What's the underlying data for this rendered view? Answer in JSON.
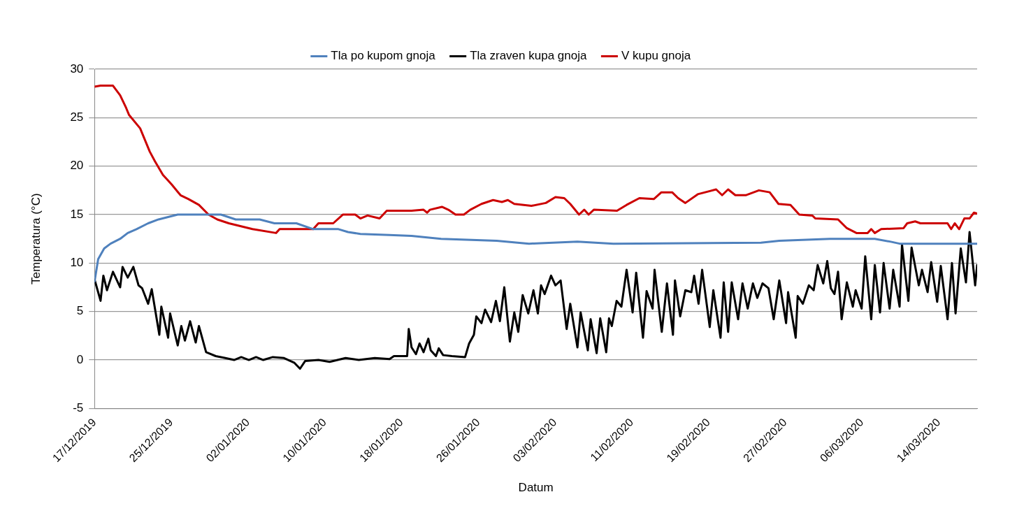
{
  "chart_data": {
    "type": "line",
    "xlabel": "Datum",
    "ylabel": "Temperatura (°C)",
    "xlim": [
      "2019-12-17",
      "2020-03-18"
    ],
    "xticks": [
      {
        "value": "2019-12-17",
        "label": "17/12/2019"
      },
      {
        "value": "2019-12-25",
        "label": "25/12/2019"
      },
      {
        "value": "2020-01-02",
        "label": "02/01/2020"
      },
      {
        "value": "2020-01-10",
        "label": "10/01/2020"
      },
      {
        "value": "2020-01-18",
        "label": "18/01/2020"
      },
      {
        "value": "2020-01-26",
        "label": "26/01/2020"
      },
      {
        "value": "2020-02-03",
        "label": "03/02/2020"
      },
      {
        "value": "2020-02-11",
        "label": "11/02/2020"
      },
      {
        "value": "2020-02-19",
        "label": "19/02/2020"
      },
      {
        "value": "2020-02-27",
        "label": "27/02/2020"
      },
      {
        "value": "2020-03-06",
        "label": "06/03/2020"
      },
      {
        "value": "2020-03-14",
        "label": "14/03/2020"
      }
    ],
    "ylim": [
      -5,
      30
    ],
    "yticks": [
      -5,
      0,
      5,
      10,
      15,
      20,
      25,
      30
    ],
    "grid": "y",
    "legend": "top",
    "marker": "none",
    "line_style": "solid",
    "series": [
      {
        "name": "Tla po kupom gnoja",
        "color": "#4f81bd",
        "x": [
          "2019-12-17T00:00",
          "2019-12-17T09:00",
          "2019-12-18T00:00",
          "2019-12-18T16:00",
          "2019-12-19T16:00",
          "2019-12-20T11:00",
          "2019-12-21T09:00",
          "2019-12-22T14:00",
          "2019-12-23T16:00",
          "2019-12-25T16:00",
          "2019-12-30T04:00",
          "2019-12-31T17:00",
          "2020-01-03T05:00",
          "2020-01-04T18:00",
          "2020-01-07T01:00",
          "2020-01-08T19:00",
          "2020-01-11T10:00",
          "2020-01-12T10:00",
          "2020-01-13T17:00",
          "2020-01-16T18:00",
          "2020-01-19T01:00",
          "2020-01-22T03:00",
          "2020-01-27T22:00",
          "2020-01-31T07:00",
          "2020-02-05T08:00",
          "2020-02-09T02:00",
          "2020-02-24T11:00",
          "2020-02-26T09:00",
          "2020-03-02T16:00",
          "2020-03-07T08:00",
          "2020-03-09T00:00",
          "2020-03-09T22:00",
          "2020-03-18T00:00"
        ],
        "values": [
          8.1,
          10.4,
          11.5,
          12.0,
          12.5,
          13.1,
          13.5,
          14.1,
          14.5,
          15.0,
          15.0,
          14.5,
          14.5,
          14.1,
          14.1,
          13.5,
          13.5,
          13.2,
          13.0,
          12.9,
          12.8,
          12.5,
          12.3,
          12.0,
          12.2,
          12.0,
          12.1,
          12.3,
          12.5,
          12.5,
          12.2,
          12.0,
          12.0
        ]
      },
      {
        "name": "Tla zraven kupa gnoja",
        "color": "#000000",
        "x": [
          "2019-12-17T00:00",
          "2019-12-17T15:00",
          "2019-12-17T22:00",
          "2019-12-18T07:00",
          "2019-12-18T22:00",
          "2019-12-19T16:00",
          "2019-12-19T22:00",
          "2019-12-20T11:00",
          "2019-12-21T01:00",
          "2019-12-21T14:00",
          "2019-12-21T23:00",
          "2019-12-22T14:00",
          "2019-12-22T23:00",
          "2019-12-23T18:00",
          "2019-12-23T23:00",
          "2019-12-24T16:00",
          "2019-12-24T21:00",
          "2019-12-25T16:00",
          "2019-12-26T01:00",
          "2019-12-26T10:00",
          "2019-12-26T23:00",
          "2019-12-27T13:00",
          "2019-12-27T21:00",
          "2019-12-28T15:00",
          "2019-12-29T15:00",
          "2019-12-30T15:00",
          "2019-12-31T13:00",
          "2020-01-01T07:00",
          "2020-01-02T02:00",
          "2020-01-02T20:00",
          "2020-01-03T14:00",
          "2020-01-04T14:00",
          "2020-01-05T18:00",
          "2020-01-06T20:00",
          "2020-01-07T10:00",
          "2020-01-07T23:00",
          "2020-01-09T08:00",
          "2020-01-10T12:00",
          "2020-01-12T04:00",
          "2020-01-13T13:00",
          "2020-01-15T05:00",
          "2020-01-16T18:00",
          "2020-01-17T05:00",
          "2020-01-18T14:00",
          "2020-01-18T18:00",
          "2020-01-19T01:00",
          "2020-01-19T12:00",
          "2020-01-19T21:00",
          "2020-01-20T07:00",
          "2020-01-20T19:00",
          "2020-01-21T01:00",
          "2020-01-21T14:00",
          "2020-01-21T21:00",
          "2020-01-22T08:00",
          "2020-01-23T06:00",
          "2020-01-24T15:00",
          "2020-01-25T01:00",
          "2020-01-25T13:00",
          "2020-01-25T19:00",
          "2020-01-26T08:00",
          "2020-01-26T17:00",
          "2020-01-27T08:00",
          "2020-01-27T20:00",
          "2020-01-28T06:00",
          "2020-01-28T17:00",
          "2020-01-29T07:00",
          "2020-01-29T18:00",
          "2020-01-30T04:00",
          "2020-01-30T15:00",
          "2020-01-31T05:00",
          "2020-01-31T18:00",
          "2020-02-01T05:00",
          "2020-02-01T13:00",
          "2020-02-01T22:00",
          "2020-02-02T14:00",
          "2020-02-03T01:00",
          "2020-02-03T14:00",
          "2020-02-04T05:00",
          "2020-02-04T14:00",
          "2020-02-05T08:00",
          "2020-02-05T16:00",
          "2020-02-06T10:00",
          "2020-02-06T17:00",
          "2020-02-07T08:00",
          "2020-02-07T17:00",
          "2020-02-08T08:00",
          "2020-02-08T15:00",
          "2020-02-08T22:00",
          "2020-02-09T10:00",
          "2020-02-09T22:00",
          "2020-02-10T11:00",
          "2020-02-11T02:00",
          "2020-02-11T11:00",
          "2020-02-12T04:00",
          "2020-02-12T13:00",
          "2020-02-13T04:00",
          "2020-02-13T09:00",
          "2020-02-14T03:00",
          "2020-02-14T16:00",
          "2020-02-15T07:00",
          "2020-02-15T12:00",
          "2020-02-16T01:00",
          "2020-02-16T14:00",
          "2020-02-17T05:00",
          "2020-02-17T12:00",
          "2020-02-17T23:00",
          "2020-02-18T08:00",
          "2020-02-19T03:00",
          "2020-02-19T12:00",
          "2020-02-20T06:00",
          "2020-02-20T14:00",
          "2020-02-21T01:00",
          "2020-02-21T10:00",
          "2020-02-22T02:00",
          "2020-02-22T13:00",
          "2020-02-23T02:00",
          "2020-02-23T15:00",
          "2020-02-24T02:00",
          "2020-02-24T15:00",
          "2020-02-25T06:00",
          "2020-02-25T19:00",
          "2020-02-26T09:00",
          "2020-02-27T02:00",
          "2020-02-27T07:00",
          "2020-02-28T02:00",
          "2020-02-28T07:00",
          "2020-02-28T20:00",
          "2020-02-29T11:00",
          "2020-02-29T23:00",
          "2020-03-01T09:00",
          "2020-03-01T23:00",
          "2020-03-02T09:00",
          "2020-03-02T18:00",
          "2020-03-03T03:00",
          "2020-03-03T12:00",
          "2020-03-03T21:00",
          "2020-03-04T10:00",
          "2020-03-05T01:00",
          "2020-03-05T08:00",
          "2020-03-05T23:00",
          "2020-03-06T08:00",
          "2020-03-06T23:00",
          "2020-03-07T08:00",
          "2020-03-07T21:00",
          "2020-03-08T06:00",
          "2020-03-08T21:00",
          "2020-03-09T06:00",
          "2020-03-09T22:00",
          "2020-03-10T04:00",
          "2020-03-10T20:00",
          "2020-03-11T04:00",
          "2020-03-11T22:00",
          "2020-03-12T06:00",
          "2020-03-12T20:00",
          "2020-03-13T05:00",
          "2020-03-13T20:00",
          "2020-03-14T05:00",
          "2020-03-14T22:00",
          "2020-03-15T09:00",
          "2020-03-15T18:00",
          "2020-03-16T07:00",
          "2020-03-16T20:00",
          "2020-03-17T05:00",
          "2020-03-17T19:00",
          "2020-03-18T00:00"
        ],
        "values": [
          8.3,
          6.1,
          8.7,
          7.2,
          9.1,
          7.5,
          9.6,
          8.5,
          9.6,
          7.7,
          7.4,
          5.8,
          7.3,
          2.6,
          5.5,
          2.3,
          4.8,
          1.5,
          3.5,
          2.0,
          4.0,
          1.8,
          3.5,
          0.8,
          0.4,
          0.2,
          0,
          0.3,
          0,
          0.3,
          0,
          0.3,
          0.2,
          -0.3,
          -0.9,
          -0.1,
          0,
          -0.2,
          0.2,
          0,
          0.2,
          0.1,
          0.4,
          0.4,
          3.2,
          1.3,
          0.6,
          1.7,
          0.8,
          2.2,
          1.0,
          0.4,
          1.2,
          0.5,
          0.4,
          0.3,
          1.7,
          2.6,
          4.5,
          3.8,
          5.2,
          3.9,
          6.1,
          4.0,
          7.5,
          1.9,
          4.9,
          2.9,
          6.7,
          4.8,
          7.2,
          4.8,
          7.7,
          6.8,
          8.7,
          7.7,
          8.2,
          3.2,
          5.8,
          1.3,
          4.9,
          1.0,
          4.2,
          0.7,
          4.3,
          0.8,
          4.3,
          3.5,
          6.1,
          5.5,
          9.3,
          4.9,
          9.0,
          2.3,
          7.1,
          5.3,
          9.3,
          2.9,
          7.9,
          2.6,
          8.2,
          4.5,
          7.2,
          7.0,
          8.7,
          5.8,
          9.3,
          3.4,
          7.2,
          2.3,
          8.0,
          2.9,
          8.0,
          4.2,
          7.9,
          5.3,
          7.9,
          6.4,
          7.9,
          7.4,
          4.2,
          8.2,
          3.8,
          7.0,
          2.3,
          6.6,
          5.8,
          7.7,
          7.2,
          9.8,
          7.9,
          10.2,
          7.4,
          6.8,
          9.1,
          4.2,
          8.0,
          5.5,
          7.2,
          5.3,
          10.7,
          4.2,
          9.8,
          4.9,
          10.0,
          5.3,
          9.3,
          5.5,
          11.9,
          6.1,
          11.6,
          7.7,
          9.3,
          7.0,
          10.1,
          6.0,
          9.7,
          4.2,
          10.0,
          4.8,
          11.5,
          8.0,
          13.2,
          7.7,
          9.8
        ]
      },
      {
        "name": "V kupu gnoja",
        "color": "#cc0000",
        "x": [
          "2019-12-17T00:00",
          "2019-12-17T15:00",
          "2019-12-18T22:00",
          "2019-12-19T16:00",
          "2019-12-20T07:00",
          "2019-12-20T14:00",
          "2019-12-21T18:00",
          "2019-12-22T18:00",
          "2019-12-23T07:00",
          "2019-12-24T03:00",
          "2019-12-25T01:00",
          "2019-12-25T23:00",
          "2019-12-26T19:00",
          "2019-12-27T21:00",
          "2019-12-28T21:00",
          "2019-12-29T19:00",
          "2019-12-31T00:00",
          "2020-01-02T11:00",
          "2020-01-04T22:00",
          "2020-01-05T07:00",
          "2020-01-08T19:00",
          "2020-01-09T08:00",
          "2020-01-10T21:00",
          "2020-01-11T21:00",
          "2020-01-13T04:00",
          "2020-01-13T17:00",
          "2020-01-14T11:00",
          "2020-01-15T17:00",
          "2020-01-16T11:00",
          "2020-01-19T01:00",
          "2020-01-20T07:00",
          "2020-01-20T16:00",
          "2020-01-20T23:00",
          "2020-01-22T05:00",
          "2020-01-22T21:00",
          "2020-01-23T15:00",
          "2020-01-24T12:00",
          "2020-01-25T04:00",
          "2020-01-26T08:00",
          "2020-01-27T13:00",
          "2020-01-28T11:00",
          "2020-01-29T02:00",
          "2020-01-29T18:00",
          "2020-01-31T13:00",
          "2020-02-02T01:00",
          "2020-02-03T01:00",
          "2020-02-03T23:00",
          "2020-02-04T14:00",
          "2020-02-05T12:00",
          "2020-02-06T01:00",
          "2020-02-06T12:00",
          "2020-02-07T01:00",
          "2020-02-09T11:00",
          "2020-02-10T11:00",
          "2020-02-11T19:00",
          "2020-02-13T07:00",
          "2020-02-14T02:00",
          "2020-02-15T05:00",
          "2020-02-15T20:00",
          "2020-02-16T14:00",
          "2020-02-17T21:00",
          "2020-02-19T19:00",
          "2020-02-20T10:00",
          "2020-02-21T01:00",
          "2020-02-21T19:00",
          "2020-02-22T21:00",
          "2020-02-24T06:00",
          "2020-02-25T09:00",
          "2020-02-26T07:00",
          "2020-02-27T13:00",
          "2020-02-28T11:00",
          "2020-02-29T20:00",
          "2020-03-01T03:00",
          "2020-03-03T12:00",
          "2020-03-04T10:00",
          "2020-03-05T10:00",
          "2020-03-06T14:00",
          "2020-03-06T23:00",
          "2020-03-07T08:00",
          "2020-03-08T00:00",
          "2020-03-10T08:00",
          "2020-03-10T17:00",
          "2020-03-11T13:00",
          "2020-03-12T02:00",
          "2020-03-14T22:00",
          "2020-03-15T07:00",
          "2020-03-15T16:00",
          "2020-03-16T03:00",
          "2020-03-16T16:00",
          "2020-03-17T05:00",
          "2020-03-17T16:00",
          "2020-03-18T00:00"
        ],
        "values": [
          28.2,
          28.3,
          28.3,
          27.3,
          26.0,
          25.3,
          23.9,
          21.5,
          20.5,
          19.1,
          18.1,
          17.0,
          16.6,
          16.0,
          15.0,
          14.5,
          14.1,
          13.5,
          13.1,
          13.5,
          13.5,
          14.1,
          14.1,
          15.0,
          15.0,
          14.6,
          14.9,
          14.6,
          15.4,
          15.4,
          15.5,
          15.2,
          15.5,
          15.8,
          15.5,
          15.0,
          15.0,
          15.5,
          16.1,
          16.5,
          16.3,
          16.5,
          16.1,
          15.9,
          16.2,
          16.8,
          16.7,
          16.1,
          15.0,
          15.5,
          15.0,
          15.5,
          15.4,
          16.0,
          16.7,
          16.6,
          17.3,
          17.3,
          16.7,
          16.2,
          17.1,
          17.6,
          17.0,
          17.6,
          17.0,
          17.0,
          17.5,
          17.3,
          16.1,
          16.0,
          15.0,
          14.9,
          14.6,
          14.5,
          13.6,
          13.1,
          13.1,
          13.5,
          13.1,
          13.5,
          13.6,
          14.1,
          14.3,
          14.1,
          14.1,
          13.5,
          14.1,
          13.5,
          14.6,
          14.6,
          15.2,
          15.1
        ]
      }
    ]
  }
}
